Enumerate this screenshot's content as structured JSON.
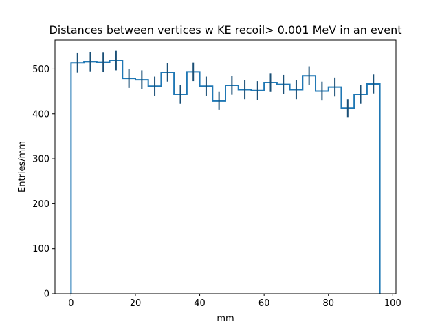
{
  "chart_data": {
    "type": "histogram",
    "title": "Distances between vertices w  KE recoil> 0.001 MeV in an event",
    "xlabel": "mm",
    "ylabel": "Entries/mm",
    "xlim": [
      -5,
      101
    ],
    "ylim": [
      0,
      565
    ],
    "xticks": [
      0,
      20,
      40,
      60,
      80,
      100
    ],
    "yticks": [
      0,
      100,
      200,
      300,
      400,
      500
    ],
    "grid": false,
    "legend": "none",
    "line_color": "#1f77b4",
    "errorbar_color": "#1a4f76",
    "bin_edges": [
      0,
      4,
      8,
      12,
      16,
      20,
      24,
      28,
      32,
      36,
      40,
      44,
      48,
      52,
      56,
      60,
      64,
      68,
      72,
      76,
      80,
      84,
      88,
      92,
      96
    ],
    "bin_centers": [
      2,
      6,
      10,
      14,
      18,
      22,
      26,
      30,
      34,
      38,
      42,
      46,
      50,
      54,
      58,
      62,
      66,
      70,
      74,
      78,
      82,
      86,
      90,
      94
    ],
    "values": [
      514,
      517,
      515,
      519,
      479,
      476,
      462,
      493,
      444,
      494,
      462,
      429,
      464,
      454,
      452,
      470,
      466,
      454,
      485,
      451,
      460,
      413,
      444,
      467
    ],
    "errors": [
      22,
      22,
      22,
      22,
      21,
      21,
      21,
      21,
      21,
      21,
      21,
      20,
      21,
      21,
      21,
      21,
      21,
      21,
      21,
      21,
      21,
      20,
      21,
      21
    ]
  }
}
